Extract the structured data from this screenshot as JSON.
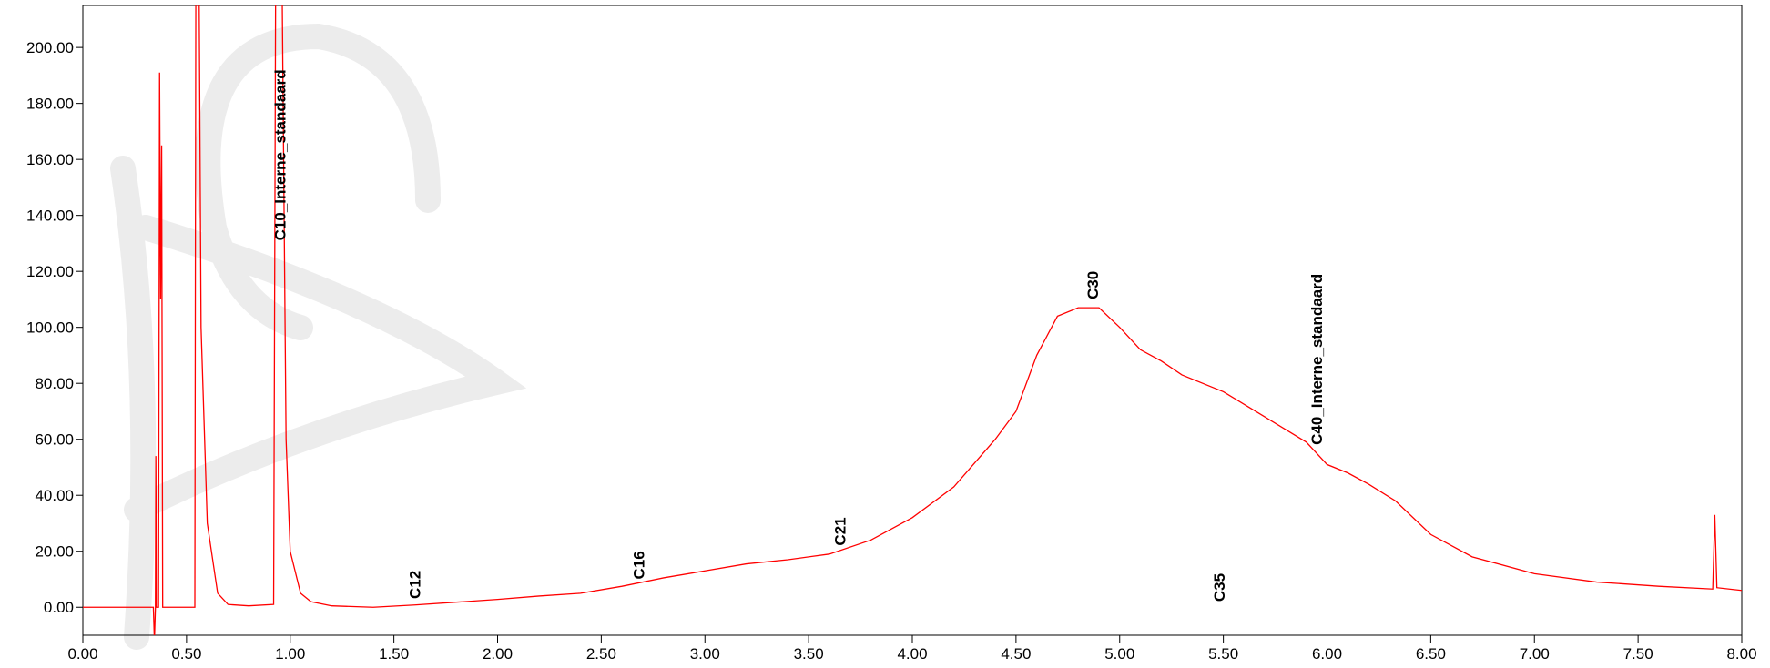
{
  "chart_data": {
    "type": "line",
    "color": "#ff0000",
    "xlim": [
      0,
      8
    ],
    "ylim": [
      -10,
      215
    ],
    "xticks": [
      {
        "value": 0,
        "label": "0.00"
      },
      {
        "value": 0.5,
        "label": "0.50"
      },
      {
        "value": 1,
        "label": "1.00"
      },
      {
        "value": 1.5,
        "label": "1.50"
      },
      {
        "value": 2,
        "label": "2.00"
      },
      {
        "value": 2.5,
        "label": "2.50"
      },
      {
        "value": 3,
        "label": "3.00"
      },
      {
        "value": 3.5,
        "label": "3.50"
      },
      {
        "value": 4,
        "label": "4.00"
      },
      {
        "value": 4.5,
        "label": "4.50"
      },
      {
        "value": 5,
        "label": "5.00"
      },
      {
        "value": 5.5,
        "label": "5.50"
      },
      {
        "value": 6,
        "label": "6.00"
      },
      {
        "value": 6.5,
        "label": "6.50"
      },
      {
        "value": 7,
        "label": "7.00"
      },
      {
        "value": 7.5,
        "label": "7.50"
      },
      {
        "value": 8,
        "label": "8.00"
      }
    ],
    "yticks": [
      {
        "value": 0,
        "label": "0.00"
      },
      {
        "value": 20,
        "label": "20.00"
      },
      {
        "value": 40,
        "label": "40.00"
      },
      {
        "value": 60,
        "label": "60.00"
      },
      {
        "value": 80,
        "label": "80.00"
      },
      {
        "value": 100,
        "label": "100.00"
      },
      {
        "value": 120,
        "label": "120.00"
      },
      {
        "value": 140,
        "label": "140.00"
      },
      {
        "value": 160,
        "label": "160.00"
      },
      {
        "value": 180,
        "label": "180.00"
      },
      {
        "value": 200,
        "label": "200.00"
      }
    ],
    "x": [
      0,
      0.34,
      0.345,
      0.35,
      0.352,
      0.355,
      0.365,
      0.37,
      0.375,
      0.38,
      0.385,
      0.54,
      0.545,
      0.56,
      0.57,
      0.6,
      0.65,
      0.7,
      0.8,
      0.92,
      0.93,
      0.96,
      0.98,
      1.0,
      1.05,
      1.1,
      1.2,
      1.4,
      1.6,
      1.8,
      2.0,
      2.2,
      2.4,
      2.6,
      2.8,
      3.0,
      3.2,
      3.4,
      3.6,
      3.8,
      4.0,
      4.2,
      4.4,
      4.5,
      4.6,
      4.7,
      4.8,
      4.9,
      5.0,
      5.1,
      5.2,
      5.3,
      5.5,
      5.7,
      5.9,
      5.95,
      6.0,
      6.1,
      6.2,
      6.33,
      6.5,
      6.7,
      7.0,
      7.3,
      7.6,
      7.86,
      7.87,
      7.88,
      8.0
    ],
    "values": [
      0,
      0,
      -12,
      0,
      54,
      0,
      0,
      191,
      110,
      165,
      0,
      0,
      230,
      230,
      100,
      30,
      5,
      1,
      0.5,
      1,
      230,
      230,
      60,
      20,
      5,
      2,
      0.5,
      0,
      0.8,
      1.8,
      2.8,
      4,
      5,
      7.5,
      10.5,
      13,
      15.5,
      17,
      19,
      24,
      32,
      43,
      60,
      70,
      90,
      104,
      107,
      107,
      100,
      92,
      88,
      83,
      77,
      68,
      59,
      55,
      51,
      48,
      44,
      38,
      26,
      18,
      12,
      9,
      7.5,
      6.5,
      33,
      7,
      6
    ],
    "annotations": [
      {
        "text": "C10_Interne_standaard",
        "x": 0.95,
        "y": 131
      },
      {
        "text": "C12",
        "x": 1.6,
        "y": 3
      },
      {
        "text": "C16",
        "x": 2.68,
        "y": 10
      },
      {
        "text": "C21",
        "x": 3.65,
        "y": 22
      },
      {
        "text": "C30",
        "x": 4.87,
        "y": 110
      },
      {
        "text": "C35",
        "x": 5.48,
        "y": 2
      },
      {
        "text": "C40_Interne_standaard",
        "x": 5.95,
        "y": 58
      }
    ]
  }
}
